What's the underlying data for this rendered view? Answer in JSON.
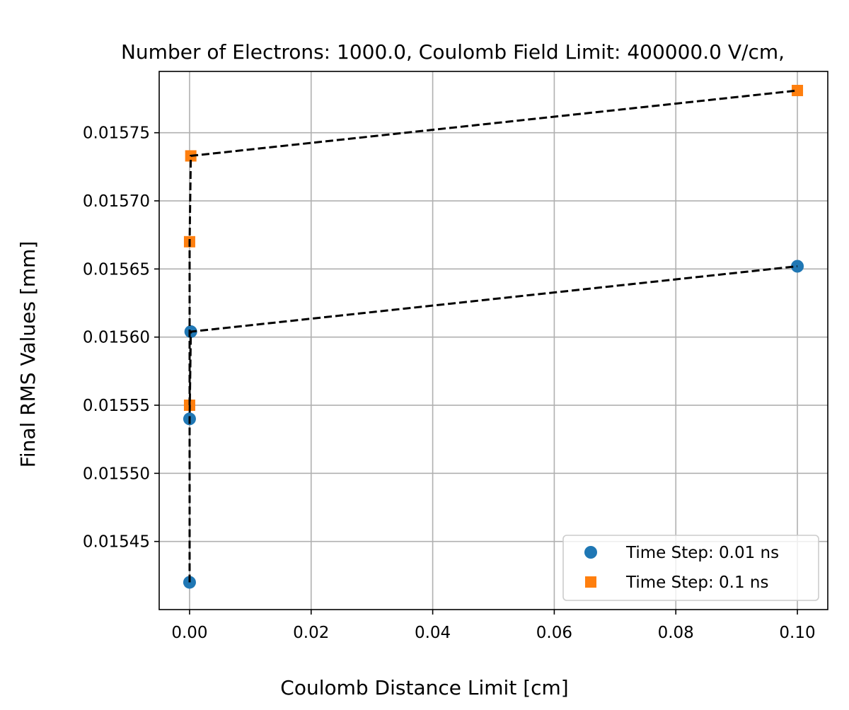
{
  "chart_data": {
    "type": "scatter",
    "title": "Number of Electrons: 1000.0, Coulomb Field Limit: 400000.0 V/cm,",
    "xlabel": "Coulomb Distance Limit [cm]",
    "ylabel": "Final RMS Values [mm]",
    "xlim": [
      -0.005,
      0.105
    ],
    "ylim": [
      0.0154,
      0.015795
    ],
    "xticks": [
      0.0,
      0.02,
      0.04,
      0.06,
      0.08,
      0.1
    ],
    "xtick_labels": [
      "0.00",
      "0.02",
      "0.04",
      "0.06",
      "0.08",
      "0.10"
    ],
    "yticks": [
      0.01545,
      0.0155,
      0.01555,
      0.0156,
      0.01565,
      0.0157,
      0.01575
    ],
    "ytick_labels": [
      "0.01545",
      "0.01550",
      "0.01555",
      "0.01560",
      "0.01565",
      "0.01570",
      "0.01575"
    ],
    "grid": true,
    "legend_position": "lower-right",
    "series": [
      {
        "name": "Time Step: 0.01 ns",
        "marker": "circle",
        "color": "#1f77b4",
        "x": [
          0.0,
          0.0,
          0.0002,
          0.1
        ],
        "y": [
          0.01542,
          0.01554,
          0.015604,
          0.015652
        ]
      },
      {
        "name": "Time Step: 0.1 ns",
        "marker": "square",
        "color": "#ff7f0e",
        "x": [
          0.0,
          0.0,
          0.0002,
          0.1
        ],
        "y": [
          0.01555,
          0.01567,
          0.015733,
          0.015781
        ]
      }
    ],
    "fit_lines": [
      {
        "color": "#000000",
        "style": "dashed",
        "x": [
          0.0,
          0.0,
          0.0002,
          0.1
        ],
        "y": [
          0.01542,
          0.01554,
          0.015604,
          0.015652
        ]
      },
      {
        "color": "#000000",
        "style": "dashed",
        "x": [
          0.0,
          0.0,
          0.0002,
          0.1
        ],
        "y": [
          0.01555,
          0.01567,
          0.015733,
          0.015781
        ]
      }
    ]
  }
}
